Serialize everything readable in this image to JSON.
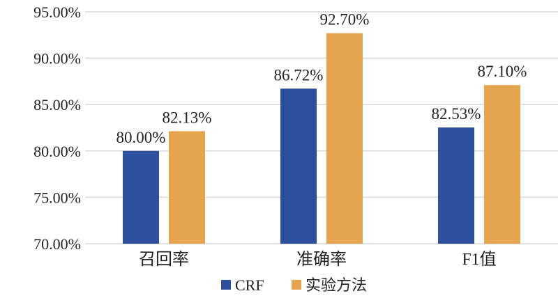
{
  "chart_data": {
    "type": "bar",
    "categories": [
      "召回率",
      "准确率",
      "F1值"
    ],
    "series": [
      {
        "name": "CRF",
        "color": "#2E4F9C",
        "values": [
          80.0,
          86.72,
          82.53
        ],
        "labels": [
          "80.00%",
          "86.72%",
          "82.53%"
        ]
      },
      {
        "name": "实验方法",
        "color": "#E5A54F",
        "values": [
          82.13,
          92.7,
          87.1
        ],
        "labels": [
          "82.13%",
          "92.70%",
          "87.10%"
        ]
      }
    ],
    "ylim": [
      70,
      95
    ],
    "yticks": [
      70,
      75,
      80,
      85,
      90,
      95
    ],
    "ytick_labels": [
      "70.00%",
      "75.00%",
      "80.00%",
      "85.00%",
      "90.00%",
      "95.00%"
    ],
    "grid": true,
    "grid_color": "#D9D9D9",
    "legend_position": "bottom"
  }
}
